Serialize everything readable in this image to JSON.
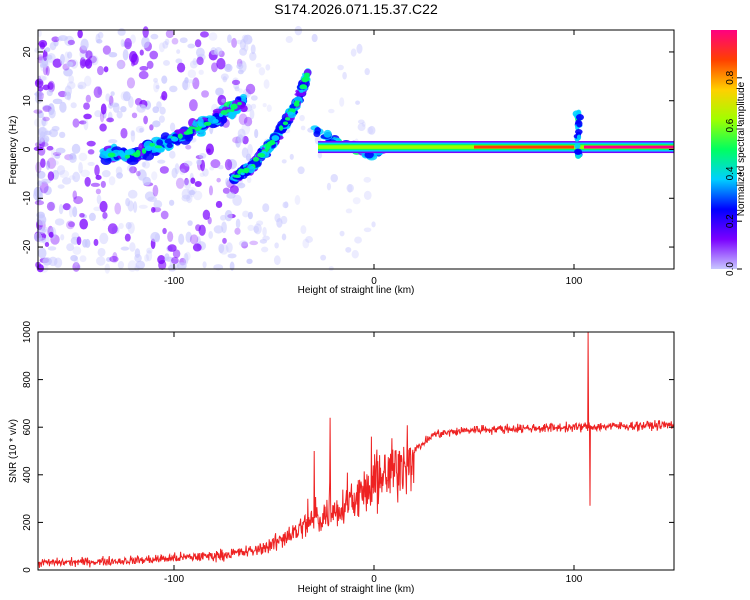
{
  "title": "S174.2026.071.15.37.C22",
  "chart_data": [
    {
      "type": "heatmap",
      "name": "spectrogram",
      "xlabel": "Height of straight line (km)",
      "ylabel": "Frequency (Hz)",
      "xlim": [
        -168,
        150
      ],
      "ylim": [
        -24.5,
        24.5
      ],
      "xticks": [
        -100,
        0,
        100
      ],
      "yticks": [
        -20,
        -10,
        0,
        10,
        20
      ],
      "colorbar": {
        "label": "Normalized spectral amplitude",
        "range": [
          0,
          1
        ],
        "ticks": [
          0.0,
          0.2,
          0.4,
          0.6,
          0.8
        ],
        "tick_labels": [
          "0.0",
          "0.2",
          "0.4",
          "0.6",
          "0.8"
        ],
        "colormap": [
          "#c8c8ff",
          "#7a00ff",
          "#0000ff",
          "#00d0ff",
          "#00ff60",
          "#a0ff00",
          "#ffd000",
          "#ff4000",
          "#ff0080"
        ]
      },
      "features": {
        "main_tone": {
          "x_start": -28,
          "x_end": 150,
          "freq": 0.5,
          "peak_amplitude": 0.95
        },
        "rising_branch_1": {
          "x": [
            -135,
            -120,
            -100,
            -80,
            -65
          ],
          "freq": [
            -1,
            -1,
            2,
            6,
            10
          ]
        },
        "rising_branch_2": {
          "x": [
            -70,
            -60,
            -48,
            -38,
            -33
          ],
          "freq": [
            -6,
            -3,
            3,
            10,
            16
          ]
        },
        "disturbance_at_km": 102
      }
    },
    {
      "type": "line",
      "name": "snr",
      "xlabel": "Height of straight line (km)",
      "ylabel": "SNR (10 * v/v)",
      "xlim": [
        -168,
        150
      ],
      "ylim": [
        0,
        1000
      ],
      "xticks": [
        -100,
        0,
        100
      ],
      "yticks": [
        0,
        200,
        400,
        600,
        800,
        1000
      ],
      "color": "#ee2222",
      "trend_x": [
        -168,
        -140,
        -120,
        -100,
        -80,
        -60,
        -50,
        -40,
        -30,
        -20,
        -10,
        0,
        10,
        20,
        30,
        50,
        100,
        150
      ],
      "trend_y": [
        30,
        35,
        40,
        50,
        60,
        80,
        110,
        160,
        210,
        250,
        300,
        350,
        420,
        500,
        570,
        590,
        600,
        610
      ],
      "spikes": [
        {
          "x": -22,
          "y": 640
        },
        {
          "x": -30,
          "y": 500
        },
        {
          "x": 107,
          "y": 1000
        },
        {
          "x": 108,
          "y": 270
        }
      ]
    }
  ]
}
